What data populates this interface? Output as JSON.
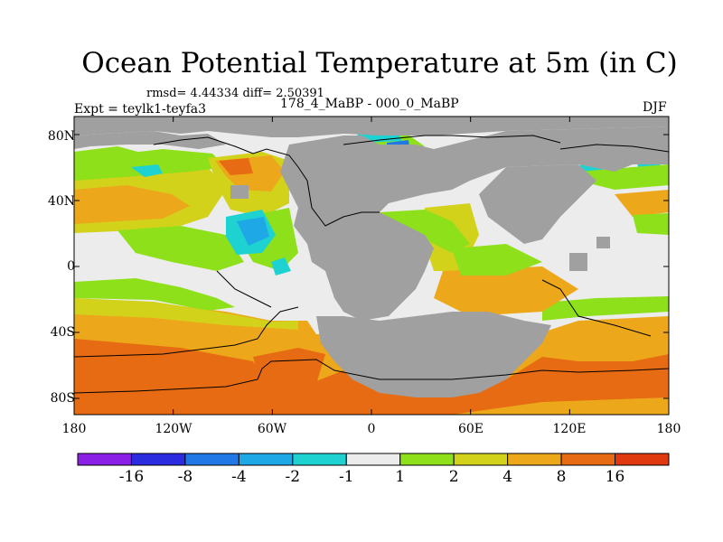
{
  "title": "Ocean Potential Temperature at 5m (in C)",
  "stats_text": "rmsd= 4.44334 diff= 2.50391",
  "experiment_text": "Expt = teylk1-teyfa3",
  "period_text": "178_4_MaBP - 000_0_MaBP",
  "season": "DJF",
  "y_ticks": [
    "80N",
    "40N",
    "0",
    "40S",
    "80S"
  ],
  "x_ticks": [
    "180",
    "120W",
    "60W",
    "0",
    "60E",
    "120E",
    "180"
  ],
  "colorbar": {
    "colors": [
      "#8c1fe6",
      "#2b2be0",
      "#1f78e6",
      "#1fa8e6",
      "#1fd2d2",
      "#ececec",
      "#8ee01a",
      "#d2d21a",
      "#eca81a",
      "#e66b12",
      "#e0380f"
    ],
    "labels": [
      "-16",
      "-8",
      "-4",
      "-2",
      "-1",
      "1",
      "2",
      "4",
      "8",
      "16"
    ]
  },
  "legend_colors": {
    "land": "#a0a0a0",
    "near_zero": "#ececec",
    "yellow": "#d2d21a",
    "green": "#8ee01a",
    "orange_light": "#eca81a",
    "orange_dark": "#e66b12",
    "cyan": "#1fd2d2",
    "blue_light": "#1fa8e6",
    "blue": "#1f78e6"
  }
}
